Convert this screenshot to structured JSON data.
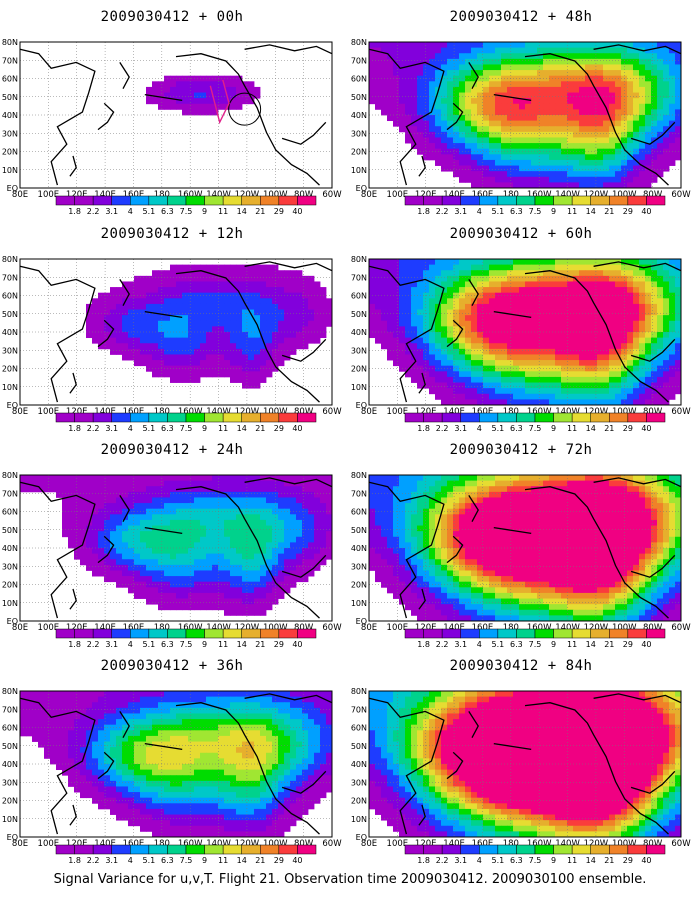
{
  "caption": "Signal Variance for u,v,T. Flight 21. Observation time 2009030412. 2009030100 ensemble.",
  "lat_labels": [
    "80N",
    "70N",
    "60N",
    "50N",
    "40N",
    "30N",
    "20N",
    "10N",
    "EQ"
  ],
  "lon_labels": [
    "80E",
    "100E",
    "120E",
    "140E",
    "160E",
    "180",
    "160W",
    "140W",
    "120W",
    "100W",
    "80W",
    "60W"
  ],
  "colorbar": {
    "labels": [
      "1.8",
      "2.2",
      "3.1",
      "4",
      "5.1",
      "6.3",
      "7.5",
      "9",
      "11",
      "14",
      "21",
      "29",
      "40"
    ],
    "colors": [
      "#a000c8",
      "#8200dc",
      "#1e3cff",
      "#00a0ff",
      "#00c8c8",
      "#00d28c",
      "#00dc00",
      "#a0e632",
      "#e6dc32",
      "#e6af2d",
      "#f08228",
      "#fa3c3c",
      "#f00082"
    ]
  },
  "panels": [
    {
      "title": "2009030412 + 00h",
      "lead_hours": 0,
      "intensity": 0
    },
    {
      "title": "2009030412 + 12h",
      "lead_hours": 12,
      "intensity": 1
    },
    {
      "title": "2009030412 + 24h",
      "lead_hours": 24,
      "intensity": 2
    },
    {
      "title": "2009030412 + 36h",
      "lead_hours": 36,
      "intensity": 3
    },
    {
      "title": "2009030412 + 48h",
      "lead_hours": 48,
      "intensity": 4
    },
    {
      "title": "2009030412 + 60h",
      "lead_hours": 60,
      "intensity": 5
    },
    {
      "title": "2009030412 + 72h",
      "lead_hours": 72,
      "intensity": 6
    },
    {
      "title": "2009030412 + 84h",
      "lead_hours": 84,
      "intensity": 7
    }
  ]
}
